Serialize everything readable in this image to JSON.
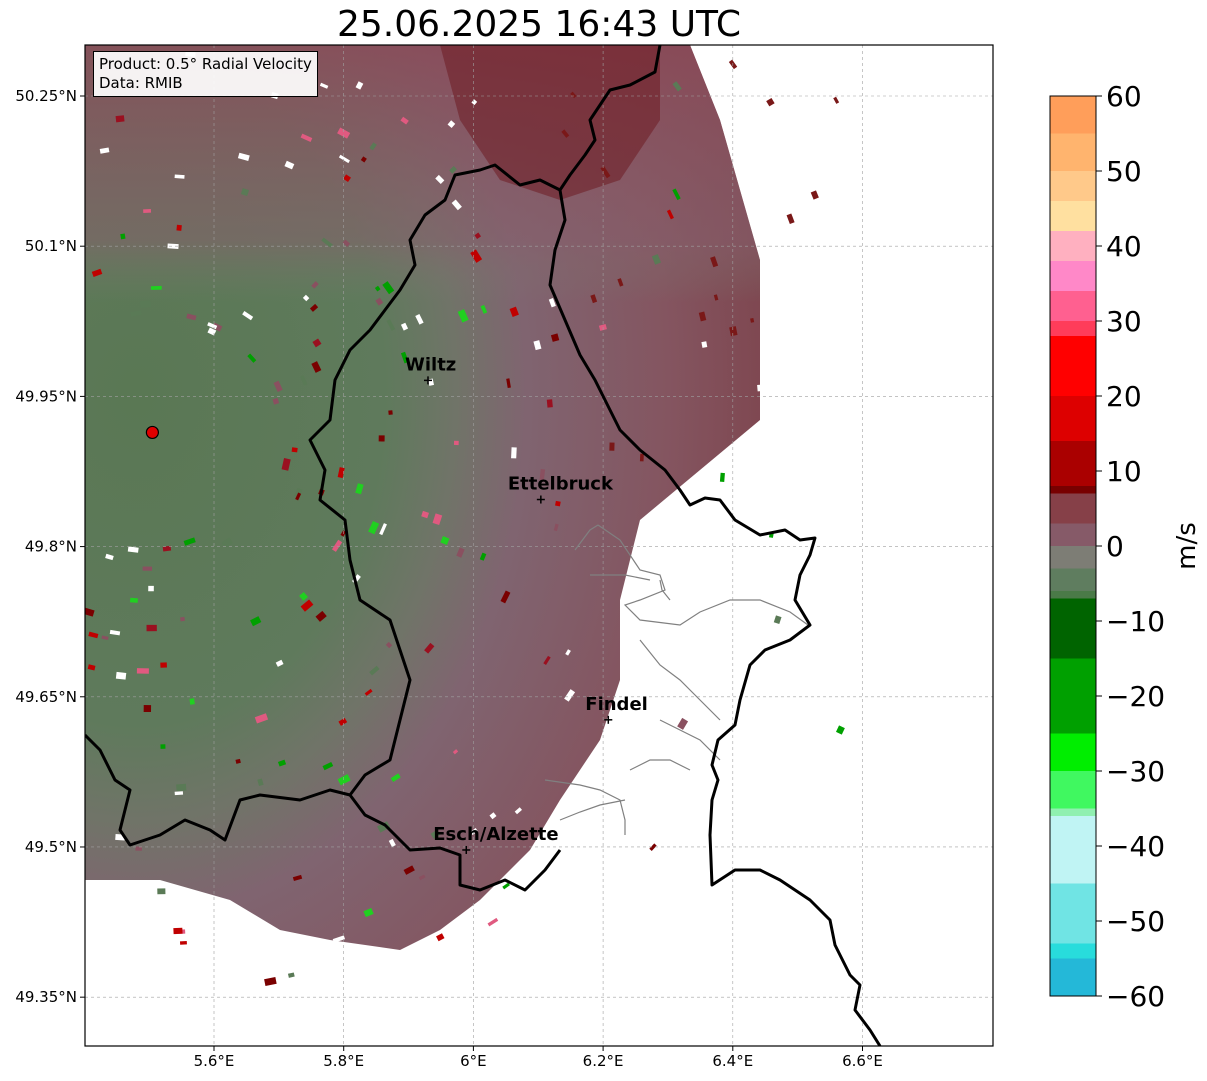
{
  "title": "25.06.2025 16:43 UTC",
  "info": {
    "product": "Product: 0.5° Radial Velocity",
    "data": "Data: RMIB"
  },
  "map": {
    "lon_range": [
      5.4,
      6.8
    ],
    "lat_range": [
      49.3,
      50.3
    ],
    "lon_ticks": [
      {
        "value": 5.6,
        "label": "5.6°E"
      },
      {
        "value": 5.8,
        "label": "5.8°E"
      },
      {
        "value": 6.0,
        "label": "6°E"
      },
      {
        "value": 6.2,
        "label": "6.2°E"
      },
      {
        "value": 6.4,
        "label": "6.4°E"
      },
      {
        "value": 6.6,
        "label": "6.6°E"
      }
    ],
    "lat_ticks": [
      {
        "value": 49.35,
        "label": "49.35°N"
      },
      {
        "value": 49.5,
        "label": "49.5°N"
      },
      {
        "value": 49.65,
        "label": "49.65°N"
      },
      {
        "value": 49.8,
        "label": "49.8°N"
      },
      {
        "value": 49.95,
        "label": "49.95°N"
      },
      {
        "value": 50.1,
        "label": "50.1°N"
      },
      {
        "value": 50.25,
        "label": "50.25°N"
      }
    ],
    "radar_site": {
      "lon": 5.505,
      "lat": 49.914
    },
    "cities": [
      {
        "name": "Wiltz",
        "lon": 5.93,
        "lat": 49.966
      },
      {
        "name": "Ettelbruck",
        "lon": 6.104,
        "lat": 49.847
      },
      {
        "name": "Findel",
        "lon": 6.208,
        "lat": 49.627
      },
      {
        "name": "Esch/Alzette",
        "lon": 5.989,
        "lat": 49.497
      }
    ]
  },
  "colorbar": {
    "label": "m/s",
    "min": -60,
    "max": 60,
    "ticks": [
      {
        "value": 60,
        "label": "60"
      },
      {
        "value": 50,
        "label": "50"
      },
      {
        "value": 40,
        "label": "40"
      },
      {
        "value": 30,
        "label": "30"
      },
      {
        "value": 20,
        "label": "20"
      },
      {
        "value": 10,
        "label": "10"
      },
      {
        "value": 0,
        "label": "0"
      },
      {
        "value": -10,
        "label": "−10"
      },
      {
        "value": -20,
        "label": "−20"
      },
      {
        "value": -30,
        "label": "−30"
      },
      {
        "value": -40,
        "label": "−40"
      },
      {
        "value": -50,
        "label": "−50"
      },
      {
        "value": -60,
        "label": "−60"
      }
    ],
    "stops": [
      {
        "v": 60,
        "color": "#ff9e5a"
      },
      {
        "v": 55,
        "color": "#ffb46e"
      },
      {
        "v": 50,
        "color": "#ffc98a"
      },
      {
        "v": 46,
        "color": "#ffe0a0"
      },
      {
        "v": 42,
        "color": "#ffb0c0"
      },
      {
        "v": 38,
        "color": "#ff88c8"
      },
      {
        "v": 34,
        "color": "#ff6090"
      },
      {
        "v": 30,
        "color": "#ff3c5a"
      },
      {
        "v": 28,
        "color": "#ff0000"
      },
      {
        "v": 20,
        "color": "#dd0000"
      },
      {
        "v": 14,
        "color": "#aa0000"
      },
      {
        "v": 8,
        "color": "#780000"
      },
      {
        "v": 7,
        "color": "#864048"
      },
      {
        "v": 3,
        "color": "#865a68"
      },
      {
        "v": 0,
        "color": "#7d7d75"
      },
      {
        "v": -3,
        "color": "#5f7d5f"
      },
      {
        "v": -6,
        "color": "#4a7a48"
      },
      {
        "v": -7,
        "color": "#006400"
      },
      {
        "v": -15,
        "color": "#00a000"
      },
      {
        "v": -25,
        "color": "#00ee00"
      },
      {
        "v": -30,
        "color": "#40f860"
      },
      {
        "v": -35,
        "color": "#90f0b0"
      },
      {
        "v": -36,
        "color": "#c0f4f4"
      },
      {
        "v": -45,
        "color": "#70e4e4"
      },
      {
        "v": -53,
        "color": "#28dcdc"
      },
      {
        "v": -55,
        "color": "#24b8d8"
      },
      {
        "v": -60,
        "color": "#2080c8"
      }
    ]
  }
}
